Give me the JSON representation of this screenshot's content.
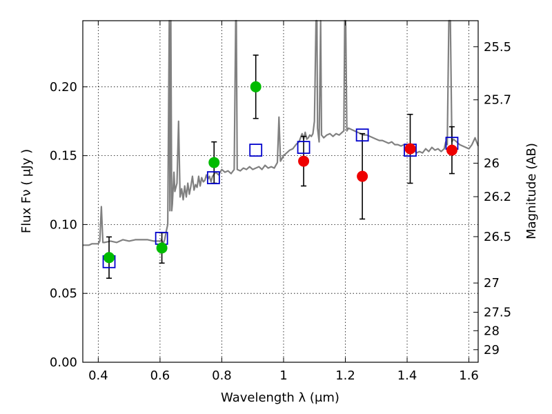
{
  "chart_data": {
    "type": "scatter",
    "title": "",
    "xlabel": "Wavelength  λ (μm)",
    "ylabel": "Flux  Fν  ( μJy )",
    "y2label": "Magnitude (AB)",
    "xlim": [
      0.35,
      1.63
    ],
    "ylim": [
      0.0,
      0.248
    ],
    "grid": true,
    "x_ticks": [
      0.4,
      0.6,
      0.8,
      1.0,
      1.2,
      1.4,
      1.6
    ],
    "x_tick_labels": [
      "0.4",
      "0.6",
      "0.8",
      "1",
      "1.2",
      "1.4",
      "1.6"
    ],
    "y_ticks": [
      0.0,
      0.05,
      0.1,
      0.15,
      0.2
    ],
    "y_tick_labels": [
      "0.00",
      "0.05",
      "0.10",
      "0.15",
      "0.20"
    ],
    "mag_ticks": [
      25.5,
      25.7,
      26,
      26.2,
      26.5,
      27,
      27.5,
      28,
      29
    ],
    "mag_tick_labels": [
      "25.5",
      "25.7",
      "26",
      "26.2",
      "26.5",
      "27",
      "27.5",
      "28",
      "29"
    ],
    "series": [
      {
        "kind": "model-spectrum",
        "color": "#808080",
        "points": [
          [
            0.35,
            0.085
          ],
          [
            0.37,
            0.085
          ],
          [
            0.38,
            0.086
          ],
          [
            0.39,
            0.086
          ],
          [
            0.4,
            0.086
          ],
          [
            0.405,
            0.088
          ],
          [
            0.41,
            0.113
          ],
          [
            0.415,
            0.087
          ],
          [
            0.42,
            0.087
          ],
          [
            0.44,
            0.088
          ],
          [
            0.46,
            0.087
          ],
          [
            0.48,
            0.089
          ],
          [
            0.5,
            0.088
          ],
          [
            0.52,
            0.089
          ],
          [
            0.54,
            0.089
          ],
          [
            0.56,
            0.089
          ],
          [
            0.58,
            0.088
          ],
          [
            0.6,
            0.088
          ],
          [
            0.605,
            0.089
          ],
          [
            0.61,
            0.086
          ],
          [
            0.615,
            0.089
          ],
          [
            0.62,
            0.095
          ],
          [
            0.625,
            0.1
          ],
          [
            0.63,
            0.248
          ],
          [
            0.632,
            0.11
          ],
          [
            0.635,
            0.248
          ],
          [
            0.638,
            0.11
          ],
          [
            0.64,
            0.115
          ],
          [
            0.645,
            0.138
          ],
          [
            0.648,
            0.124
          ],
          [
            0.655,
            0.13
          ],
          [
            0.66,
            0.175
          ],
          [
            0.665,
            0.12
          ],
          [
            0.67,
            0.126
          ],
          [
            0.675,
            0.118
          ],
          [
            0.68,
            0.128
          ],
          [
            0.685,
            0.12
          ],
          [
            0.69,
            0.13
          ],
          [
            0.695,
            0.122
          ],
          [
            0.7,
            0.128
          ],
          [
            0.705,
            0.135
          ],
          [
            0.71,
            0.125
          ],
          [
            0.715,
            0.129
          ],
          [
            0.72,
            0.127
          ],
          [
            0.725,
            0.135
          ],
          [
            0.73,
            0.128
          ],
          [
            0.735,
            0.134
          ],
          [
            0.74,
            0.131
          ],
          [
            0.745,
            0.132
          ],
          [
            0.75,
            0.136
          ],
          [
            0.755,
            0.133
          ],
          [
            0.76,
            0.135
          ],
          [
            0.765,
            0.131
          ],
          [
            0.77,
            0.135
          ],
          [
            0.78,
            0.138
          ],
          [
            0.79,
            0.136
          ],
          [
            0.8,
            0.14
          ],
          [
            0.81,
            0.138
          ],
          [
            0.82,
            0.139
          ],
          [
            0.83,
            0.137
          ],
          [
            0.84,
            0.14
          ],
          [
            0.845,
            0.248
          ],
          [
            0.847,
            0.248
          ],
          [
            0.85,
            0.14
          ],
          [
            0.86,
            0.139
          ],
          [
            0.87,
            0.141
          ],
          [
            0.88,
            0.14
          ],
          [
            0.89,
            0.142
          ],
          [
            0.9,
            0.14
          ],
          [
            0.91,
            0.141
          ],
          [
            0.92,
            0.142
          ],
          [
            0.93,
            0.14
          ],
          [
            0.94,
            0.143
          ],
          [
            0.95,
            0.141
          ],
          [
            0.96,
            0.142
          ],
          [
            0.97,
            0.141
          ],
          [
            0.98,
            0.145
          ],
          [
            0.985,
            0.178
          ],
          [
            0.99,
            0.146
          ],
          [
            1.0,
            0.15
          ],
          [
            1.01,
            0.152
          ],
          [
            1.02,
            0.154
          ],
          [
            1.03,
            0.155
          ],
          [
            1.04,
            0.158
          ],
          [
            1.05,
            0.16
          ],
          [
            1.06,
            0.166
          ],
          [
            1.065,
            0.162
          ],
          [
            1.07,
            0.167
          ],
          [
            1.075,
            0.162
          ],
          [
            1.08,
            0.163
          ],
          [
            1.085,
            0.165
          ],
          [
            1.09,
            0.164
          ],
          [
            1.095,
            0.166
          ],
          [
            1.1,
            0.175
          ],
          [
            1.105,
            0.248
          ],
          [
            1.108,
            0.248
          ],
          [
            1.11,
            0.17
          ],
          [
            1.115,
            0.16
          ],
          [
            1.12,
            0.248
          ],
          [
            1.123,
            0.165
          ],
          [
            1.13,
            0.163
          ],
          [
            1.14,
            0.165
          ],
          [
            1.15,
            0.166
          ],
          [
            1.16,
            0.164
          ],
          [
            1.17,
            0.166
          ],
          [
            1.18,
            0.165
          ],
          [
            1.19,
            0.167
          ],
          [
            1.195,
            0.168
          ],
          [
            1.198,
            0.248
          ],
          [
            1.201,
            0.248
          ],
          [
            1.205,
            0.168
          ],
          [
            1.21,
            0.17
          ],
          [
            1.22,
            0.169
          ],
          [
            1.23,
            0.168
          ],
          [
            1.24,
            0.167
          ],
          [
            1.25,
            0.166
          ],
          [
            1.26,
            0.165
          ],
          [
            1.27,
            0.165
          ],
          [
            1.28,
            0.164
          ],
          [
            1.29,
            0.163
          ],
          [
            1.3,
            0.162
          ],
          [
            1.31,
            0.161
          ],
          [
            1.32,
            0.161
          ],
          [
            1.33,
            0.16
          ],
          [
            1.34,
            0.159
          ],
          [
            1.35,
            0.16
          ],
          [
            1.36,
            0.158
          ],
          [
            1.37,
            0.158
          ],
          [
            1.38,
            0.157
          ],
          [
            1.39,
            0.158
          ],
          [
            1.4,
            0.158
          ],
          [
            1.41,
            0.154
          ],
          [
            1.42,
            0.155
          ],
          [
            1.43,
            0.152
          ],
          [
            1.44,
            0.153
          ],
          [
            1.45,
            0.152
          ],
          [
            1.46,
            0.155
          ],
          [
            1.47,
            0.153
          ],
          [
            1.48,
            0.156
          ],
          [
            1.49,
            0.154
          ],
          [
            1.5,
            0.155
          ],
          [
            1.51,
            0.153
          ],
          [
            1.52,
            0.155
          ],
          [
            1.525,
            0.16
          ],
          [
            1.53,
            0.158
          ],
          [
            1.535,
            0.248
          ],
          [
            1.54,
            0.248
          ],
          [
            1.545,
            0.16
          ],
          [
            1.55,
            0.162
          ],
          [
            1.56,
            0.16
          ],
          [
            1.57,
            0.158
          ],
          [
            1.58,
            0.157
          ],
          [
            1.59,
            0.156
          ],
          [
            1.6,
            0.155
          ],
          [
            1.61,
            0.158
          ],
          [
            1.62,
            0.163
          ],
          [
            1.63,
            0.157
          ]
        ]
      },
      {
        "kind": "model-photometry",
        "marker": "open-square",
        "color": "#0000cc",
        "points": [
          [
            0.435,
            0.073
          ],
          [
            0.605,
            0.09
          ],
          [
            0.773,
            0.134
          ],
          [
            0.91,
            0.154
          ],
          [
            1.065,
            0.156
          ],
          [
            1.255,
            0.165
          ],
          [
            1.41,
            0.154
          ],
          [
            1.545,
            0.159
          ]
        ]
      },
      {
        "kind": "observed-optical",
        "marker": "filled-circle",
        "color": "#00bb00",
        "points": [
          {
            "x": 0.435,
            "y": 0.076,
            "err": 0.015
          },
          {
            "x": 0.606,
            "y": 0.083,
            "err": 0.011
          },
          {
            "x": 0.775,
            "y": 0.145,
            "err": 0.015
          },
          {
            "x": 0.91,
            "y": 0.2,
            "err": 0.023
          }
        ]
      },
      {
        "kind": "observed-nir",
        "marker": "filled-circle",
        "color": "#ee0000",
        "points": [
          {
            "x": 1.065,
            "y": 0.146,
            "err": 0.018
          },
          {
            "x": 1.255,
            "y": 0.135,
            "err": 0.031
          },
          {
            "x": 1.41,
            "y": 0.155,
            "err": 0.025
          },
          {
            "x": 1.545,
            "y": 0.154,
            "err": 0.017
          }
        ]
      }
    ]
  }
}
